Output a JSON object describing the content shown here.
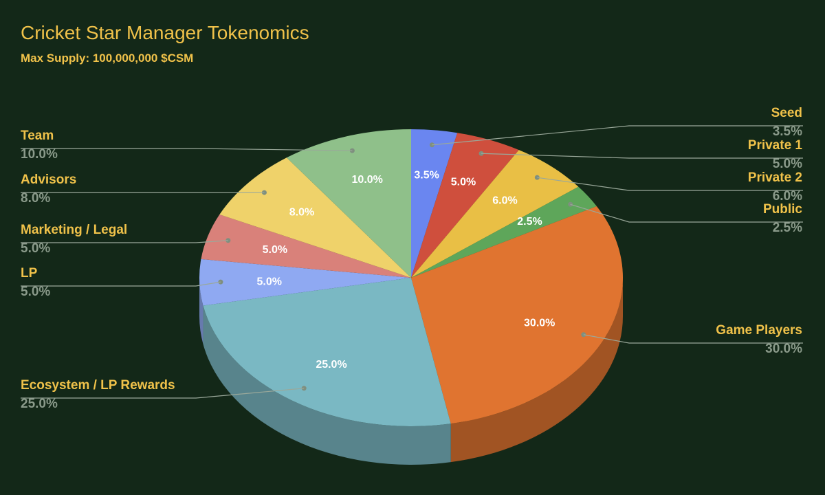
{
  "chart_data": {
    "type": "pie",
    "title": "Cricket Star Manager Tokenomics",
    "subtitle": "Max Supply: 100,000,000 $CSM",
    "style": "3d",
    "start": "top, clockwise",
    "slices": [
      {
        "label": "Seed",
        "value": 3.5,
        "display": "3.5%",
        "color": "#6a86f0",
        "side": "right"
      },
      {
        "label": "Private 1",
        "value": 5.0,
        "display": "5.0%",
        "color": "#cf4f3d",
        "side": "right"
      },
      {
        "label": "Private 2",
        "value": 6.0,
        "display": "6.0%",
        "color": "#e9bf45",
        "side": "right"
      },
      {
        "label": "Public",
        "value": 2.5,
        "display": "2.5%",
        "color": "#5ea65a",
        "side": "right"
      },
      {
        "label": "Game Players",
        "value": 30.0,
        "display": "30.0%",
        "color": "#e07430",
        "side": "right"
      },
      {
        "label": "Ecosystem / LP Rewards",
        "value": 25.0,
        "display": "25.0%",
        "color": "#7ab8c3",
        "side": "left"
      },
      {
        "label": "LP",
        "value": 5.0,
        "display": "5.0%",
        "color": "#8fa9f2",
        "side": "left"
      },
      {
        "label": "Marketing / Legal",
        "value": 5.0,
        "display": "5.0%",
        "color": "#d9817a",
        "side": "left"
      },
      {
        "label": "Advisors",
        "value": 8.0,
        "display": "8.0%",
        "color": "#efd26a",
        "side": "left"
      },
      {
        "label": "Team",
        "value": 10.0,
        "display": "10.0%",
        "color": "#8fc08a",
        "side": "left"
      }
    ]
  }
}
